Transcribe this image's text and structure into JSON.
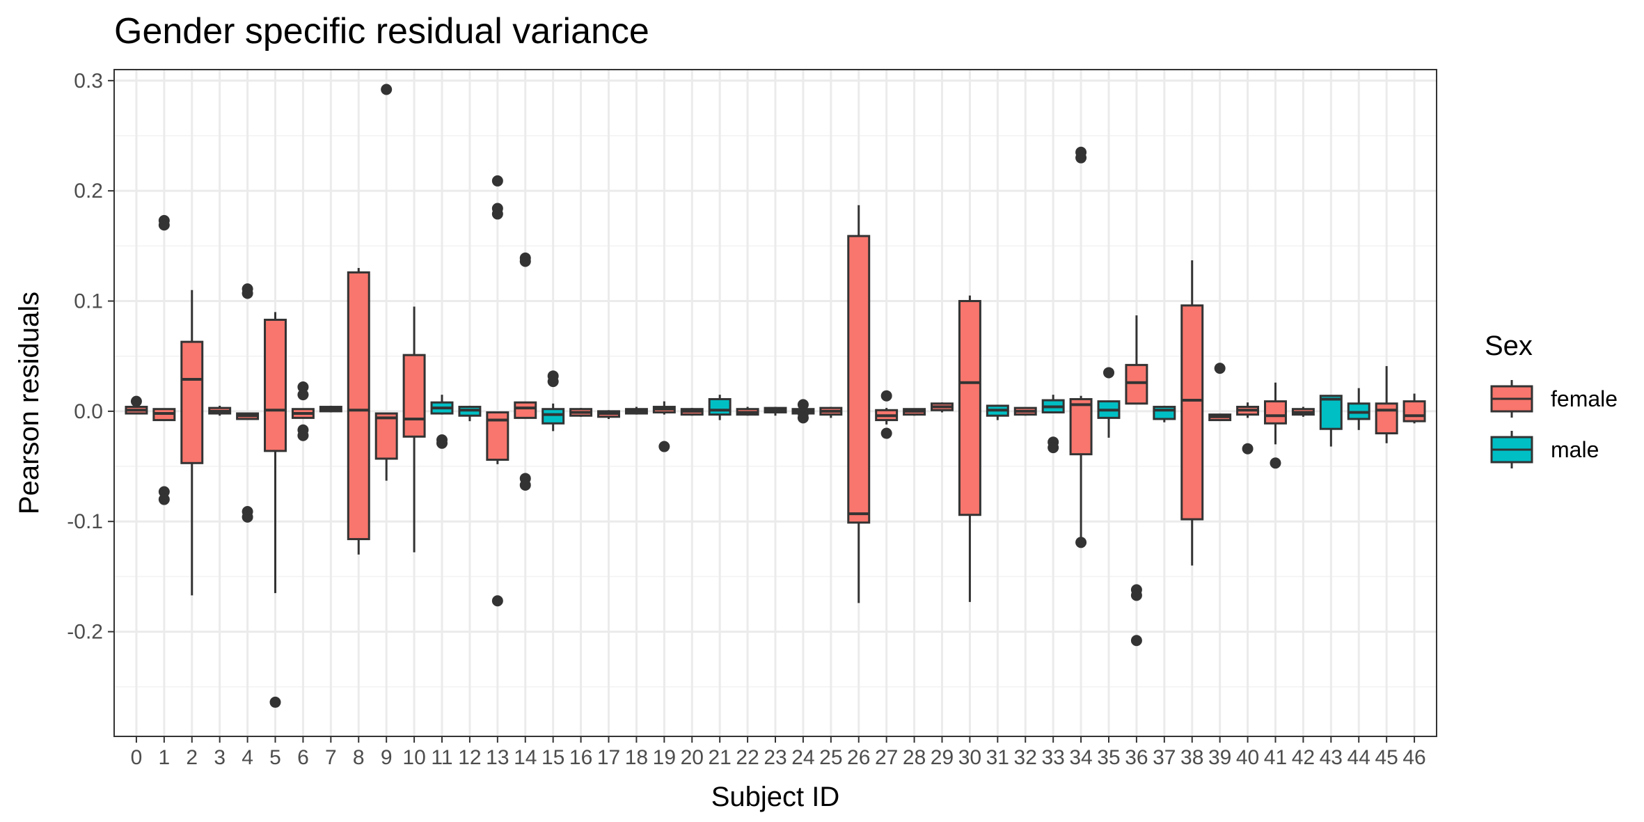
{
  "chart_data": {
    "type": "box",
    "title": "Gender specific residual variance",
    "xlabel": "Subject ID",
    "ylabel": "Pearson residuals",
    "ylim": [
      -0.295,
      0.31
    ],
    "y_ticks": [
      -0.2,
      -0.1,
      0.0,
      0.1,
      0.2,
      0.3
    ],
    "y_tick_labels": [
      "-0.2",
      "-0.1",
      "0.0",
      "0.1",
      "0.2",
      "0.3"
    ],
    "grid": true,
    "legend": {
      "title": "Sex",
      "position": "right",
      "entries": [
        {
          "label": "female",
          "color": "#F8766D"
        },
        {
          "label": "male",
          "color": "#00BFC4"
        }
      ]
    },
    "colors": {
      "female": "#F8766D",
      "male": "#00BFC4",
      "outline": "#333333"
    },
    "boxes": [
      {
        "id": "0",
        "sex": "female",
        "q1": -0.002,
        "median": 0.001,
        "q3": 0.004,
        "lo": -0.002,
        "hi": 0.004,
        "outliers": [
          0.009
        ]
      },
      {
        "id": "1",
        "sex": "female",
        "q1": -0.008,
        "median": -0.002,
        "q3": 0.002,
        "lo": -0.008,
        "hi": 0.002,
        "outliers": [
          0.173,
          0.169,
          -0.073,
          -0.08
        ]
      },
      {
        "id": "2",
        "sex": "female",
        "q1": -0.047,
        "median": 0.029,
        "q3": 0.063,
        "lo": -0.167,
        "hi": 0.11,
        "outliers": []
      },
      {
        "id": "3",
        "sex": "female",
        "q1": -0.002,
        "median": 0.0,
        "q3": 0.003,
        "lo": -0.004,
        "hi": 0.005,
        "outliers": []
      },
      {
        "id": "4",
        "sex": "female",
        "q1": -0.007,
        "median": -0.004,
        "q3": -0.002,
        "lo": -0.007,
        "hi": -0.002,
        "outliers": [
          0.111,
          0.107,
          -0.091,
          -0.096
        ]
      },
      {
        "id": "5",
        "sex": "female",
        "q1": -0.036,
        "median": 0.001,
        "q3": 0.083,
        "lo": -0.165,
        "hi": 0.09,
        "outliers": [
          -0.264
        ]
      },
      {
        "id": "6",
        "sex": "female",
        "q1": -0.006,
        "median": -0.002,
        "q3": 0.002,
        "lo": -0.006,
        "hi": 0.002,
        "outliers": [
          0.022,
          0.015,
          -0.017,
          -0.022
        ]
      },
      {
        "id": "7",
        "sex": "female",
        "q1": 0.0,
        "median": 0.002,
        "q3": 0.004,
        "lo": -0.001,
        "hi": 0.005,
        "outliers": []
      },
      {
        "id": "8",
        "sex": "female",
        "q1": -0.116,
        "median": 0.001,
        "q3": 0.126,
        "lo": -0.13,
        "hi": 0.13,
        "outliers": []
      },
      {
        "id": "9",
        "sex": "female",
        "q1": -0.043,
        "median": -0.006,
        "q3": -0.002,
        "lo": -0.063,
        "hi": -0.002,
        "outliers": [
          0.292
        ]
      },
      {
        "id": "10",
        "sex": "female",
        "q1": -0.023,
        "median": -0.007,
        "q3": 0.051,
        "lo": -0.128,
        "hi": 0.095,
        "outliers": []
      },
      {
        "id": "11",
        "sex": "male",
        "q1": -0.002,
        "median": 0.003,
        "q3": 0.008,
        "lo": -0.003,
        "hi": 0.015,
        "outliers": [
          -0.026,
          -0.029
        ]
      },
      {
        "id": "12",
        "sex": "male",
        "q1": -0.004,
        "median": 0.001,
        "q3": 0.004,
        "lo": -0.009,
        "hi": 0.005,
        "outliers": []
      },
      {
        "id": "13",
        "sex": "female",
        "q1": -0.044,
        "median": -0.008,
        "q3": -0.001,
        "lo": -0.048,
        "hi": -0.001,
        "outliers": [
          0.209,
          0.184,
          0.179,
          -0.172
        ]
      },
      {
        "id": "14",
        "sex": "female",
        "q1": -0.006,
        "median": 0.003,
        "q3": 0.008,
        "lo": -0.006,
        "hi": 0.008,
        "outliers": [
          0.139,
          0.136,
          -0.061,
          -0.067
        ]
      },
      {
        "id": "15",
        "sex": "male",
        "q1": -0.011,
        "median": -0.003,
        "q3": 0.002,
        "lo": -0.018,
        "hi": 0.007,
        "outliers": [
          0.032,
          0.027
        ]
      },
      {
        "id": "16",
        "sex": "female",
        "q1": -0.004,
        "median": -0.001,
        "q3": 0.002,
        "lo": -0.005,
        "hi": 0.003,
        "outliers": []
      },
      {
        "id": "17",
        "sex": "female",
        "q1": -0.005,
        "median": -0.002,
        "q3": 0.0,
        "lo": -0.007,
        "hi": 0.001,
        "outliers": []
      },
      {
        "id": "18",
        "sex": "female",
        "q1": -0.002,
        "median": 0.0,
        "q3": 0.002,
        "lo": -0.003,
        "hi": 0.004,
        "outliers": []
      },
      {
        "id": "19",
        "sex": "female",
        "q1": -0.001,
        "median": 0.002,
        "q3": 0.004,
        "lo": -0.003,
        "hi": 0.009,
        "outliers": [
          -0.032
        ]
      },
      {
        "id": "20",
        "sex": "female",
        "q1": -0.003,
        "median": 0.0,
        "q3": 0.002,
        "lo": -0.004,
        "hi": 0.003,
        "outliers": []
      },
      {
        "id": "21",
        "sex": "male",
        "q1": -0.003,
        "median": 0.001,
        "q3": 0.011,
        "lo": -0.008,
        "hi": 0.015,
        "outliers": []
      },
      {
        "id": "22",
        "sex": "female",
        "q1": -0.003,
        "median": -0.001,
        "q3": 0.002,
        "lo": -0.004,
        "hi": 0.004,
        "outliers": []
      },
      {
        "id": "23",
        "sex": "female",
        "q1": -0.001,
        "median": 0.001,
        "q3": 0.003,
        "lo": -0.004,
        "hi": 0.004,
        "outliers": []
      },
      {
        "id": "24",
        "sex": "female",
        "q1": -0.002,
        "median": 0.0,
        "q3": 0.002,
        "lo": -0.003,
        "hi": 0.003,
        "outliers": [
          0.006,
          -0.002,
          -0.006
        ]
      },
      {
        "id": "25",
        "sex": "female",
        "q1": -0.003,
        "median": 0.0,
        "q3": 0.003,
        "lo": -0.006,
        "hi": 0.004,
        "outliers": []
      },
      {
        "id": "26",
        "sex": "female",
        "q1": -0.101,
        "median": -0.093,
        "q3": 0.159,
        "lo": -0.174,
        "hi": 0.187,
        "outliers": []
      },
      {
        "id": "27",
        "sex": "female",
        "q1": -0.008,
        "median": -0.004,
        "q3": 0.001,
        "lo": -0.012,
        "hi": 0.003,
        "outliers": [
          0.014,
          -0.02
        ]
      },
      {
        "id": "28",
        "sex": "female",
        "q1": -0.003,
        "median": 0.0,
        "q3": 0.002,
        "lo": -0.004,
        "hi": 0.002,
        "outliers": []
      },
      {
        "id": "29",
        "sex": "female",
        "q1": 0.001,
        "median": 0.004,
        "q3": 0.007,
        "lo": -0.001,
        "hi": 0.008,
        "outliers": []
      },
      {
        "id": "30",
        "sex": "female",
        "q1": -0.094,
        "median": 0.026,
        "q3": 0.1,
        "lo": -0.173,
        "hi": 0.105,
        "outliers": []
      },
      {
        "id": "31",
        "sex": "male",
        "q1": -0.004,
        "median": 0.001,
        "q3": 0.005,
        "lo": -0.008,
        "hi": 0.005,
        "outliers": []
      },
      {
        "id": "32",
        "sex": "female",
        "q1": -0.003,
        "median": 0.0,
        "q3": 0.003,
        "lo": -0.004,
        "hi": 0.003,
        "outliers": []
      },
      {
        "id": "33",
        "sex": "male",
        "q1": -0.001,
        "median": 0.004,
        "q3": 0.01,
        "lo": -0.001,
        "hi": 0.015,
        "outliers": [
          -0.028,
          -0.033
        ]
      },
      {
        "id": "34",
        "sex": "female",
        "q1": -0.039,
        "median": 0.006,
        "q3": 0.011,
        "lo": -0.118,
        "hi": 0.014,
        "outliers": [
          0.235,
          0.23,
          -0.119
        ]
      },
      {
        "id": "35",
        "sex": "male",
        "q1": -0.006,
        "median": 0.001,
        "q3": 0.009,
        "lo": -0.024,
        "hi": 0.009,
        "outliers": [
          0.035
        ]
      },
      {
        "id": "36",
        "sex": "female",
        "q1": 0.007,
        "median": 0.026,
        "q3": 0.042,
        "lo": 0.007,
        "hi": 0.087,
        "outliers": [
          -0.162,
          -0.167,
          -0.208
        ]
      },
      {
        "id": "37",
        "sex": "male",
        "q1": -0.007,
        "median": 0.001,
        "q3": 0.004,
        "lo": -0.01,
        "hi": 0.005,
        "outliers": []
      },
      {
        "id": "38",
        "sex": "female",
        "q1": -0.098,
        "median": 0.01,
        "q3": 0.096,
        "lo": -0.14,
        "hi": 0.137,
        "outliers": []
      },
      {
        "id": "39",
        "sex": "female",
        "q1": -0.008,
        "median": -0.005,
        "q3": -0.003,
        "lo": -0.008,
        "hi": -0.003,
        "outliers": [
          0.039
        ]
      },
      {
        "id": "40",
        "sex": "female",
        "q1": -0.003,
        "median": 0.001,
        "q3": 0.004,
        "lo": -0.006,
        "hi": 0.008,
        "outliers": [
          -0.034
        ]
      },
      {
        "id": "41",
        "sex": "female",
        "q1": -0.011,
        "median": -0.004,
        "q3": 0.009,
        "lo": -0.03,
        "hi": 0.026,
        "outliers": [
          -0.047
        ]
      },
      {
        "id": "42",
        "sex": "female",
        "q1": -0.003,
        "median": -0.001,
        "q3": 0.002,
        "lo": -0.005,
        "hi": 0.004,
        "outliers": []
      },
      {
        "id": "43",
        "sex": "male",
        "q1": -0.016,
        "median": 0.011,
        "q3": 0.014,
        "lo": -0.032,
        "hi": 0.014,
        "outliers": []
      },
      {
        "id": "44",
        "sex": "male",
        "q1": -0.007,
        "median": -0.001,
        "q3": 0.007,
        "lo": -0.017,
        "hi": 0.021,
        "outliers": []
      },
      {
        "id": "45",
        "sex": "female",
        "q1": -0.02,
        "median": 0.001,
        "q3": 0.007,
        "lo": -0.029,
        "hi": 0.041,
        "outliers": []
      },
      {
        "id": "46",
        "sex": "female",
        "q1": -0.009,
        "median": -0.004,
        "q3": 0.009,
        "lo": -0.011,
        "hi": 0.016,
        "outliers": []
      }
    ]
  }
}
